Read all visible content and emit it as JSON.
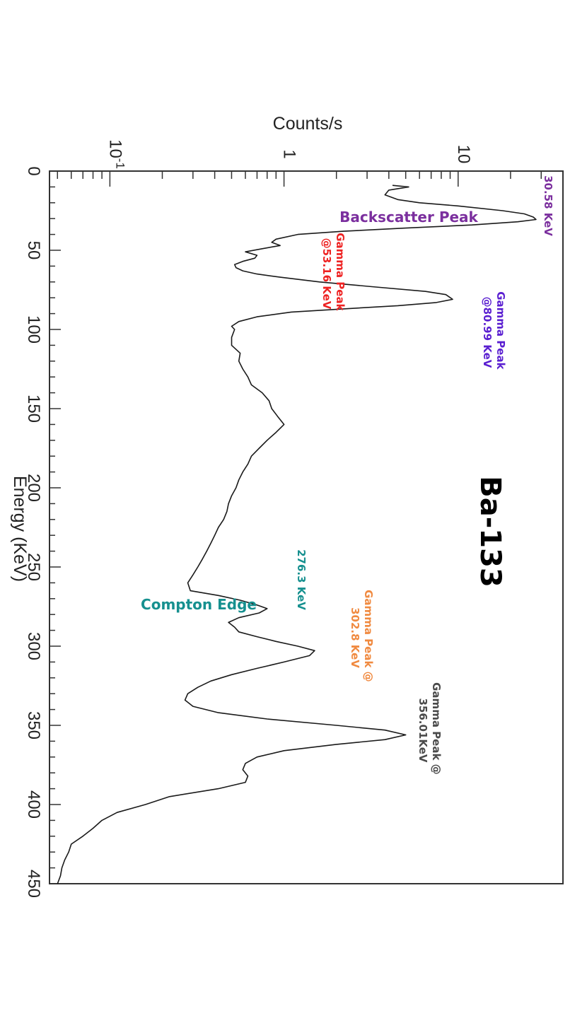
{
  "chart_data": {
    "type": "line",
    "title": "Ba-133",
    "xlabel": "Energy (KeV)",
    "ylabel": "Counts/s",
    "xlim": [
      0,
      450
    ],
    "ylim": [
      0.045,
      40
    ],
    "yscale": "log",
    "orientation": "rotated 90 degrees clockwise",
    "grid": false,
    "x_ticks": [
      "0",
      "50",
      "100",
      "150",
      "200",
      "250",
      "300",
      "350",
      "400",
      "450"
    ],
    "y_ticks": [
      {
        "value": 0.1,
        "base": "10",
        "exp": "-1"
      },
      {
        "value": 1,
        "base": "1",
        "exp": ""
      },
      {
        "value": 10,
        "base": "10",
        "exp": ""
      }
    ],
    "series": [
      {
        "x": [
          9,
          10,
          12,
          15,
          18,
          20,
          22,
          25,
          27,
          29,
          30.58,
          32,
          34,
          36,
          38,
          40,
          43,
          45,
          47,
          49,
          51,
          53.16,
          55,
          57,
          59,
          61,
          63,
          65,
          67,
          70,
          73,
          76,
          78,
          80.99,
          83,
          85,
          87,
          89,
          92,
          95,
          98,
          100,
          105,
          110,
          115,
          120,
          125,
          130,
          135,
          140,
          145,
          150,
          155,
          160,
          165,
          170,
          175,
          180,
          185,
          190,
          195,
          200,
          205,
          210,
          215,
          220,
          225,
          230,
          235,
          240,
          245,
          250,
          255,
          260,
          265,
          268,
          271,
          274,
          276.3,
          279,
          282,
          285,
          288,
          291,
          294,
          297,
          300,
          302.8,
          306,
          310,
          314,
          318,
          322,
          326,
          330,
          334,
          338,
          342,
          346,
          350,
          353,
          356.01,
          359,
          362,
          366,
          370,
          374,
          378,
          382,
          386,
          390,
          395,
          400,
          405,
          410,
          415,
          420,
          425,
          430,
          435,
          440,
          445,
          450
        ],
        "y": [
          4.2,
          5.2,
          4.0,
          3.8,
          4.5,
          6.0,
          10,
          18,
          24,
          27,
          28,
          22,
          12,
          5.0,
          2.2,
          1.2,
          0.9,
          0.85,
          0.95,
          0.75,
          0.6,
          0.7,
          0.68,
          0.58,
          0.52,
          0.53,
          0.58,
          0.7,
          0.95,
          1.6,
          3.2,
          6.5,
          8.5,
          9.3,
          7.5,
          4.5,
          2.2,
          1.1,
          0.7,
          0.55,
          0.5,
          0.52,
          0.5,
          0.5,
          0.56,
          0.55,
          0.58,
          0.62,
          0.65,
          0.75,
          0.82,
          0.85,
          0.92,
          1.0,
          0.9,
          0.8,
          0.72,
          0.65,
          0.62,
          0.58,
          0.55,
          0.53,
          0.5,
          0.48,
          0.47,
          0.45,
          0.42,
          0.4,
          0.38,
          0.36,
          0.34,
          0.32,
          0.3,
          0.28,
          0.29,
          0.42,
          0.56,
          0.7,
          0.8,
          0.72,
          0.55,
          0.48,
          0.52,
          0.55,
          0.7,
          0.9,
          1.2,
          1.5,
          1.4,
          1.0,
          0.7,
          0.5,
          0.38,
          0.32,
          0.28,
          0.27,
          0.3,
          0.42,
          0.8,
          2.0,
          3.8,
          5.0,
          3.8,
          2.0,
          1.0,
          0.7,
          0.6,
          0.58,
          0.62,
          0.6,
          0.42,
          0.22,
          0.16,
          0.11,
          0.09,
          0.08,
          0.07,
          0.06,
          0.058,
          0.055,
          0.053,
          0.052,
          0.05
        ]
      }
    ],
    "annotations": [
      {
        "id": "backscatter-peak-label",
        "text": "Backscatter Peak",
        "color": "#7b2f9e"
      },
      {
        "id": "backscatter-energy-label",
        "text": "30.58 KeV",
        "color": "#7b2f9e"
      },
      {
        "id": "gamma-53-label",
        "lines": [
          "Gamma Peak",
          "@53.16 KeV"
        ],
        "color": "#ee2222"
      },
      {
        "id": "gamma-81-label",
        "lines": [
          "Gamma Peak",
          "@80.99 KeV"
        ],
        "color": "#5a1fd1"
      },
      {
        "id": "compton-edge-label",
        "text": "Compton Edge",
        "color": "#16908f"
      },
      {
        "id": "compton-energy-label",
        "text": "276.3 KeV",
        "color": "#16908f"
      },
      {
        "id": "gamma-303-label",
        "lines": [
          "Gamma Peak @",
          "302.8 KeV"
        ],
        "color": "#f08a40"
      },
      {
        "id": "gamma-356-label",
        "lines": [
          "Gamma Peak @",
          "356.01KeV"
        ],
        "color": "#4a4a4a"
      }
    ]
  }
}
